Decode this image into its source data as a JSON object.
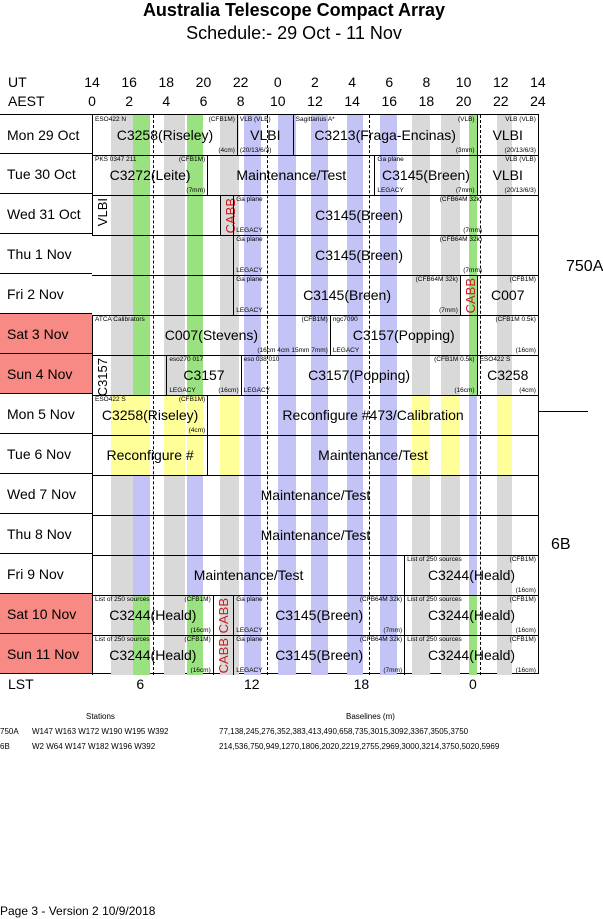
{
  "title": "Australia Telescope Compact Array",
  "subtitle": "Schedule:- 29 Oct - 11 Nov",
  "axis": {
    "ut_label": "UT",
    "aest_label": "AEST",
    "lst_label": "LST",
    "ut_ticks": [
      "14",
      "16",
      "18",
      "20",
      "22",
      "0",
      "2",
      "4",
      "6",
      "8",
      "10",
      "12",
      "14"
    ],
    "aest_ticks": [
      "0",
      "2",
      "4",
      "6",
      "8",
      "10",
      "12",
      "14",
      "16",
      "18",
      "20",
      "22",
      "24"
    ],
    "lst_ticks": [
      "6",
      "12",
      "18",
      "0"
    ]
  },
  "days": [
    {
      "label": "Mon   29 Oct",
      "weekend": false
    },
    {
      "label": "Tue   30 Oct",
      "weekend": false
    },
    {
      "label": "Wed   31 Oct",
      "weekend": false
    },
    {
      "label": "Thu    1  Nov",
      "weekend": false
    },
    {
      "label": "Fri    2  Nov",
      "weekend": false
    },
    {
      "label": "Sat   3  Nov",
      "weekend": true
    },
    {
      "label": "Sun   4  Nov",
      "weekend": true
    },
    {
      "label": "Mon   5  Nov",
      "weekend": false
    },
    {
      "label": "Tue    6  Nov",
      "weekend": false
    },
    {
      "label": "Wed   7  Nov",
      "weekend": false
    },
    {
      "label": "Thu    8  Nov",
      "weekend": false
    },
    {
      "label": "Fri    9  Nov",
      "weekend": false
    },
    {
      "label": "Sat   10 Nov",
      "weekend": true
    },
    {
      "label": "Sun   11 Nov",
      "weekend": true
    }
  ],
  "blocks": [
    {
      "row": 0,
      "start": 0,
      "end": 7.8,
      "big": "C3258(Riseley)",
      "tl": "ESO422 N",
      "tr": "(CFB1M)",
      "br": "(4cm)"
    },
    {
      "row": 0,
      "start": 7.8,
      "end": 10.8,
      "big": "VLBI",
      "tl": "VLB (VLB)",
      "bl": "(20/13/6/3)"
    },
    {
      "row": 0,
      "start": 10.8,
      "end": 20.7,
      "big": "C3213(Fraga-Encinas)",
      "tl": "Sagittarius A*",
      "tr": "(VLB)",
      "br": "(3mm)"
    },
    {
      "row": 0,
      "start": 20.7,
      "end": 24,
      "big": "VLBI",
      "tr": "VLB (VLB)",
      "br": "(20/13/6/3)"
    },
    {
      "row": 1,
      "start": 0,
      "end": 6.2,
      "big": "C3272(Leite)",
      "tl": "PKS 0347 211",
      "tr": "(CFB1M)",
      "br": "(7mm)"
    },
    {
      "row": 1,
      "start": 6.2,
      "end": 15.2,
      "big": "Maintenance/Test"
    },
    {
      "row": 1,
      "start": 15.2,
      "end": 20.7,
      "big": "C3145(Breen)",
      "tl": "Ga plane",
      "bl": "LEGACY",
      "br": "(7mm)"
    },
    {
      "row": 1,
      "start": 20.7,
      "end": 24,
      "big": "VLBI",
      "tr": "VLB (VLB)",
      "br": "(20/13/6/3)"
    },
    {
      "row": 2,
      "start": 0,
      "end": 1.1,
      "vbig": "VLBI"
    },
    {
      "row": 2,
      "start": 6.9,
      "end": 7.6,
      "vbig": "CABB"
    },
    {
      "row": 2,
      "start": 7.6,
      "end": 21.1,
      "big": "C3145(Breen)",
      "tl": "Ga plane",
      "tr": "(CFB64M 32k)",
      "bl": "LEGACY",
      "br": "(7mm)"
    },
    {
      "row": 3,
      "start": 7.6,
      "end": 21.1,
      "big": "C3145(Breen)",
      "tl": "Ga plane",
      "tr": "(CFB64M 32k)",
      "bl": "LEGACY",
      "br": "(7mm)"
    },
    {
      "row": 4,
      "start": 7.6,
      "end": 19.8,
      "big": "C3145(Breen)",
      "tl": "Ga plane",
      "tr": "(CFB64M 32k)",
      "bl": "LEGACY",
      "br": "(7mm)"
    },
    {
      "row": 4,
      "start": 19.8,
      "end": 20.7,
      "vbig": "CABB"
    },
    {
      "row": 4,
      "start": 20.7,
      "end": 24,
      "big": "C007",
      "tr": "(CFB1M)"
    },
    {
      "row": 5,
      "start": 0,
      "end": 12.8,
      "big": "C007(Stevens)",
      "tl": "ATCA Calibrators",
      "tr": "(CFB1M)",
      "br": "(16cm 4cm 15mm 7mm)"
    },
    {
      "row": 5,
      "start": 12.8,
      "end": 20.7,
      "big": "C3157(Popping)",
      "tl": "ngc7090",
      "bl": "LEGACY"
    },
    {
      "row": 5,
      "start": 20.7,
      "end": 24,
      "tr": "(CFB1M 0.5k)",
      "br": "(16cm)"
    },
    {
      "row": 6,
      "start": 0,
      "end": 4,
      "vbig": "C3157"
    },
    {
      "row": 6,
      "start": 4,
      "end": 8,
      "big": "C3157",
      "tl": "eso270 017",
      "bl": "LEGACY",
      "br": "(16cm)"
    },
    {
      "row": 6,
      "start": 8,
      "end": 20.7,
      "big": "C3157(Popping)",
      "tl": "eso 038 010",
      "tr": "(CFB1M 0.5k)",
      "bl": "LEGACY",
      "br": "(16cm)"
    },
    {
      "row": 6,
      "start": 20.7,
      "end": 24,
      "big": "C3258",
      "tl": "ESO422 S",
      "br": "(4cm)"
    },
    {
      "row": 7,
      "start": 0,
      "end": 6.2,
      "big": "C3258(Riseley)",
      "tl": "ESO422 S",
      "tr": "(CFB1M)",
      "br": "(4cm)"
    },
    {
      "row": 7,
      "start": 6.2,
      "end": 24,
      "big": "Reconfigure #473/Calibration"
    },
    {
      "row": 8,
      "start": 0,
      "end": 6.2,
      "big": "Reconfigure #"
    },
    {
      "row": 8,
      "start": 6.2,
      "end": 24,
      "big": "Maintenance/Test"
    },
    {
      "row": 9,
      "start": 0,
      "end": 24,
      "big": "Maintenance/Test"
    },
    {
      "row": 10,
      "start": 0,
      "end": 24,
      "big": "Maintenance/Test"
    },
    {
      "row": 11,
      "start": 0,
      "end": 16.8,
      "big": "Maintenance/Test"
    },
    {
      "row": 11,
      "start": 16.8,
      "end": 24,
      "big": "C3244(Heald)",
      "tl": "List of 250 sources",
      "tr": "(CFB1M)",
      "br": "(16cm)"
    },
    {
      "row": 12,
      "start": 0,
      "end": 6.5,
      "big": "C3244(Heald)",
      "tl": "List of 250 sources",
      "tr": "(CFB1M)",
      "br": "(16cm)"
    },
    {
      "row": 12,
      "start": 6.5,
      "end": 7.6,
      "vbig": "CABB"
    },
    {
      "row": 12,
      "start": 7.6,
      "end": 16.8,
      "big": "C3145(Breen)",
      "tl": "Ga plane",
      "tr": "(CFB64M 32k)",
      "bl": "LEGACY",
      "br": "(7mm)"
    },
    {
      "row": 12,
      "start": 16.8,
      "end": 24,
      "big": "C3244(Heald)",
      "tl": "List of 250 sources",
      "tr": "(CFB1M)",
      "br": "(16cm)"
    },
    {
      "row": 13,
      "start": 0,
      "end": 6.5,
      "big": "C3244(Heald)",
      "tl": "List of 250 sources",
      "tr": "(CFB1M)",
      "br": "(16cm)"
    },
    {
      "row": 13,
      "start": 6.5,
      "end": 7.6,
      "vbig": "CABB"
    },
    {
      "row": 13,
      "start": 7.6,
      "end": 16.8,
      "big": "C3145(Breen)",
      "tl": "Ga plane",
      "tr": "(CFB64M 32k)",
      "bl": "LEGACY",
      "br": "(7mm)"
    },
    {
      "row": 13,
      "start": 16.8,
      "end": 24,
      "big": "C3244(Heald)",
      "tl": "List of 250 sources",
      "tr": "(CFB1M)",
      "br": "(16cm)"
    }
  ],
  "configs": [
    {
      "label": "750A"
    },
    {
      "label": "6B"
    }
  ],
  "stations": {
    "header": "Stations",
    "rows": [
      {
        "config": "750A",
        "stations": "W147  W163  W172  W190  W195  W392"
      },
      {
        "config": "6B",
        "stations": "W2  W64  W147  W182  W196  W392"
      }
    ]
  },
  "baselines": {
    "header": "Baselines (m)",
    "rows": [
      "77,138,245,276,352,383,413,490,658,735,3015,3092,3367,3505,3750",
      "214,536,750,949,1270,1806,2020,2219,2755,2969,3000,3214,3750,5020,5969"
    ]
  },
  "footer": "Page 3 - Version 2  10/9/2018",
  "colors": {
    "weekend": "#f78a84",
    "gray": "#d9d9d9",
    "green": "#99e27f",
    "purple": "#c3c3f5",
    "yellow": "#ffff99",
    "cabb": "#c81e1e"
  }
}
